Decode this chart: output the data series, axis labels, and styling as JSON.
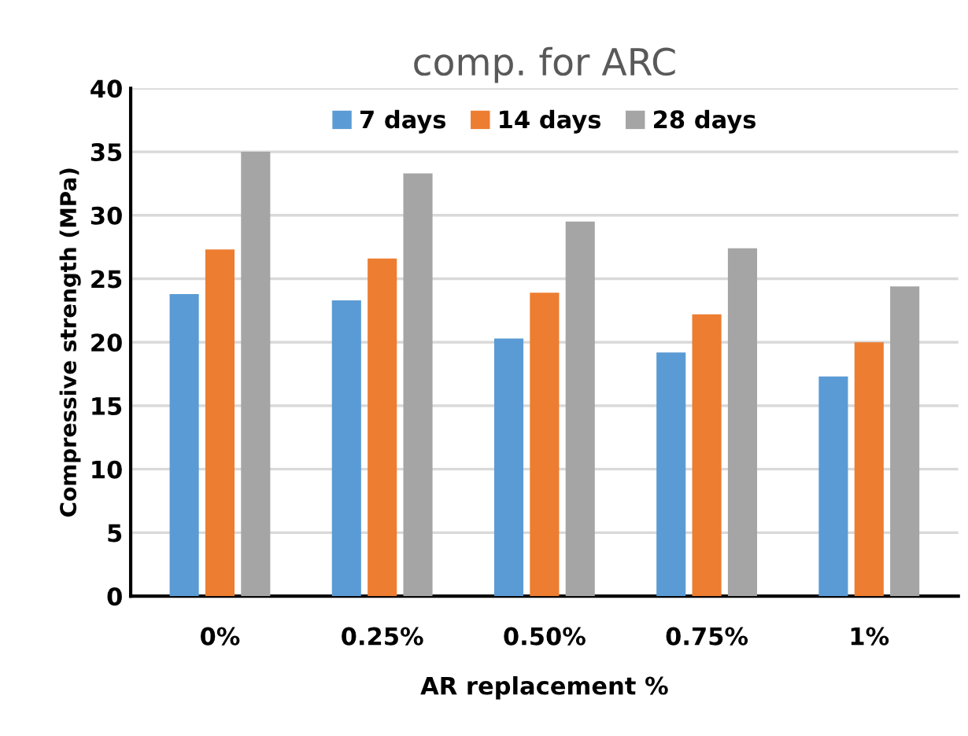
{
  "chart_data": {
    "type": "bar",
    "title": "comp. for ARC",
    "xlabel": "AR replacement %",
    "ylabel": "Compressive strength (MPa)",
    "categories": [
      "0%",
      "0.25%",
      "0.50%",
      "0.75%",
      "1%"
    ],
    "series": [
      {
        "name": "7 days",
        "color": "#5b9bd5",
        "values": [
          23.8,
          23.3,
          20.3,
          19.2,
          17.3
        ]
      },
      {
        "name": "14 days",
        "color": "#ed7d31",
        "values": [
          27.3,
          26.6,
          23.9,
          22.2,
          20.0
        ]
      },
      {
        "name": "28 days",
        "color": "#a5a5a5",
        "values": [
          35.0,
          33.3,
          29.5,
          27.4,
          24.4
        ]
      }
    ],
    "ylim": [
      0,
      40
    ],
    "yticks": [
      0,
      5,
      10,
      15,
      20,
      25,
      30,
      35,
      40
    ],
    "grid": "y",
    "legend": "top"
  }
}
